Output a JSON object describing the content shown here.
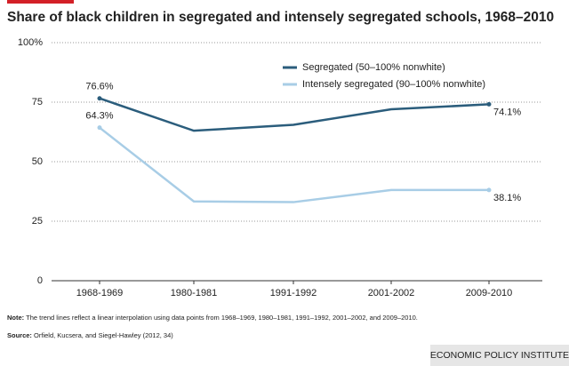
{
  "chart_data": {
    "type": "line",
    "title": "Share of black children in segregated and intensely segregated schools, 1968–2010",
    "categories": [
      "1968-1969",
      "1980-1981",
      "1991-1992",
      "2001-2002",
      "2009-2010"
    ],
    "series": [
      {
        "name": "Segregated (50–100% nonwhite)",
        "color": "#2b5d7c",
        "values": [
          76.6,
          63,
          65.5,
          72,
          74.1
        ],
        "value_labels": [
          "76.6%",
          null,
          null,
          null,
          "74.1%"
        ]
      },
      {
        "name": "Intensely segregated (90–100% nonwhite)",
        "color": "#a8cde6",
        "values": [
          64.3,
          33.3,
          33,
          38.1,
          38.1
        ],
        "value_labels": [
          "64.3%",
          null,
          null,
          null,
          "38.1%"
        ]
      }
    ],
    "ylim": [
      0,
      100
    ],
    "yticks": [
      0,
      25,
      50,
      75,
      {
        "value": 100,
        "label": "100%"
      }
    ],
    "grid": true,
    "note_label": "Note:",
    "note": "The trend lines reflect a linear interpolation using data points from 1968–1969, 1980–1981, 1991–1992, 2001–2002, and 2009–2010.",
    "source_label": "Source:",
    "source": "Orfield, Kucsera, and Siegel-Hawley (2012, 34)",
    "credit": "ECONOMIC POLICY INSTITUTE"
  }
}
